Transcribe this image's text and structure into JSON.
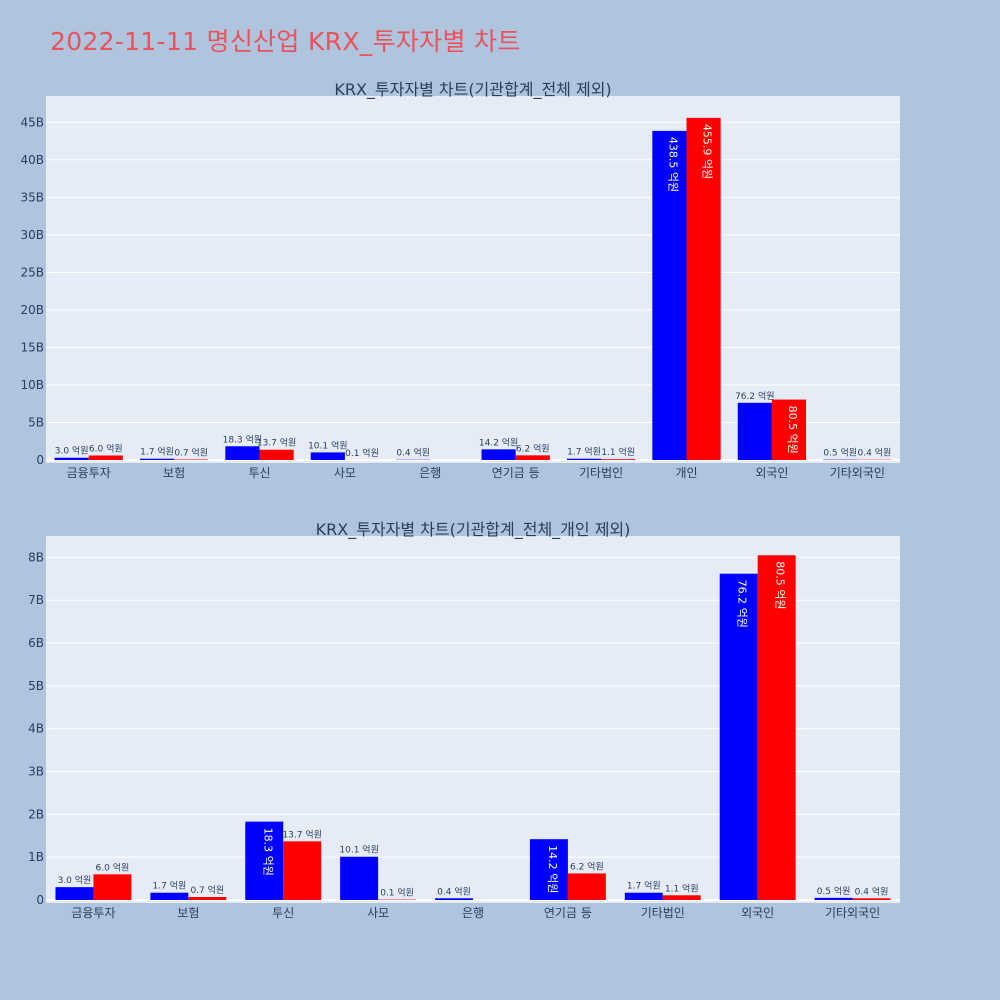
{
  "page_title": "2022-11-11 명신산업 KRX_투자자별 차트",
  "colors": {
    "buy": "#0000ff",
    "sell": "#ff0000",
    "plot_bg": "#e5ecf6",
    "page_bg": "#b0c4de",
    "title": "#e8535c"
  },
  "chart_data": [
    {
      "type": "bar",
      "title": "KRX_투자자별 차트(기관합계_전체 제외)",
      "categories": [
        "금융투자",
        "보험",
        "투신",
        "사모",
        "은행",
        "연기금 등",
        "기타법인",
        "개인",
        "외국인",
        "기타외국인"
      ],
      "series": [
        {
          "values": [
            0.3,
            0.17,
            1.83,
            1.01,
            0.04,
            1.42,
            0.17,
            43.85,
            7.62,
            0.05
          ],
          "labels": [
            "3.0 억원",
            "1.7 억원",
            "18.3 억원",
            "10.1 억원",
            "0.4 억원",
            "14.2 억원",
            "1.7 억원",
            "438.5 억원",
            "76.2 억원",
            "0.5 억원"
          ]
        },
        {
          "values": [
            0.6,
            0.07,
            1.37,
            0.01,
            0,
            0.62,
            0.11,
            45.59,
            8.05,
            0.04
          ],
          "labels": [
            "6.0 억원",
            "0.7 억원",
            "13.7 억원",
            "0.1 억원",
            "",
            "6.2 억원",
            "1.1 억원",
            "455.9 억원",
            "80.5 억원",
            "0.4 억원"
          ]
        }
      ],
      "ylim": [
        0,
        48.5
      ],
      "yticks": [
        0,
        5,
        10,
        15,
        20,
        25,
        30,
        35,
        40,
        45
      ],
      "ytick_labels": [
        "0",
        "5B",
        "10B",
        "15B",
        "20B",
        "25B",
        "30B",
        "35B",
        "40B",
        "45B"
      ],
      "grid": true
    },
    {
      "type": "bar",
      "title": "KRX_투자자별 차트(기관합계_전체_개인 제외)",
      "categories": [
        "금융투자",
        "보험",
        "투신",
        "사모",
        "은행",
        "연기금 등",
        "기타법인",
        "외국인",
        "기타외국인"
      ],
      "series": [
        {
          "values": [
            0.3,
            0.17,
            1.83,
            1.01,
            0.04,
            1.42,
            0.17,
            7.62,
            0.05
          ],
          "labels": [
            "3.0 억원",
            "1.7 억원",
            "18.3 억원",
            "10.1 억원",
            "0.4 억원",
            "14.2 억원",
            "1.7 억원",
            "76.2 억원",
            "0.5 억원"
          ]
        },
        {
          "values": [
            0.6,
            0.07,
            1.37,
            0.01,
            0,
            0.62,
            0.11,
            8.05,
            0.04
          ],
          "labels": [
            "6.0 억원",
            "0.7 억원",
            "13.7 억원",
            "0.1 억원",
            "",
            "6.2 억원",
            "1.1 억원",
            "80.5 억원",
            "0.4 억원"
          ]
        }
      ],
      "ylim": [
        0,
        8.5
      ],
      "yticks": [
        0,
        1,
        2,
        3,
        4,
        5,
        6,
        7,
        8
      ],
      "ytick_labels": [
        "0",
        "1B",
        "2B",
        "3B",
        "4B",
        "5B",
        "6B",
        "7B",
        "8B"
      ],
      "grid": true
    }
  ]
}
